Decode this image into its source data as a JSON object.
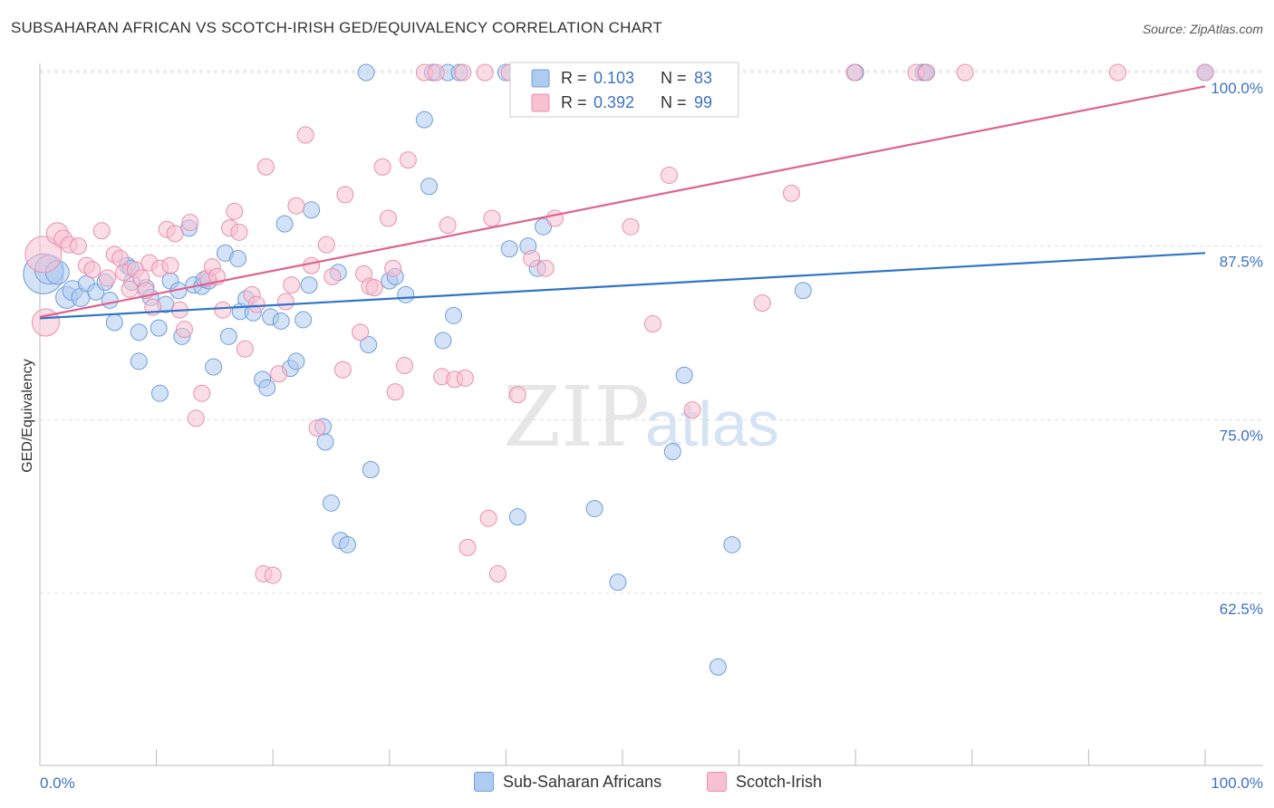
{
  "title": "SUBSAHARAN AFRICAN VS SCOTCH-IRISH GED/EQUIVALENCY CORRELATION CHART",
  "source": "Source: ZipAtlas.com",
  "watermark": {
    "zip": "ZIP",
    "atlas": "atlas"
  },
  "colors": {
    "blue_fill": "#aecbf0",
    "blue_stroke": "#6f9fd8",
    "blue_line": "#2f74c8",
    "pink_fill": "#f7c1d2",
    "pink_stroke": "#e98fad",
    "pink_line": "#e0628f",
    "tick_label": "#3d72c4",
    "grid": "#dddddd",
    "axis": "#bbbbbb"
  },
  "legend": {
    "rows": [
      {
        "r_label": "R =",
        "r_value": "0.103",
        "n_label": "N =",
        "n_value": "83"
      },
      {
        "r_label": "R =",
        "r_value": "0.392",
        "n_label": "N =",
        "n_value": "99"
      }
    ]
  },
  "bottom_legend": {
    "items": [
      "Sub-Saharan Africans",
      "Scotch-Irish"
    ]
  },
  "chart_data": {
    "type": "scatter",
    "xlabel": "",
    "ylabel": "GED/Equivalency",
    "xlim": [
      0,
      100
    ],
    "ylim": [
      50.5,
      101
    ],
    "x_tick_labels": [
      "0.0%",
      "100.0%"
    ],
    "y_ticks": [
      62.5,
      75.0,
      87.5,
      100.0
    ],
    "y_tick_labels": [
      "62.5%",
      "75.0%",
      "87.5%",
      "100.0%"
    ],
    "grid": true,
    "legend_position": "top-center",
    "series": [
      {
        "name": "Sub-Saharan Africans",
        "trend": [
          [
            0,
            82.3
          ],
          [
            100,
            87.0
          ]
        ],
        "points": [
          [
            0.3,
            85.5,
            22
          ],
          [
            0.8,
            85.8,
            16
          ],
          [
            1.5,
            85.6,
            13
          ],
          [
            2.3,
            83.8,
            12
          ],
          [
            2.8,
            84.3,
            11
          ],
          [
            3.5,
            83.8,
            10
          ],
          [
            4.0,
            84.8,
            9
          ],
          [
            4.8,
            84.2,
            9
          ],
          [
            5.6,
            84.9,
            9
          ],
          [
            6.0,
            83.6,
            9
          ],
          [
            6.4,
            82.0,
            9
          ],
          [
            7.5,
            86.1,
            9
          ],
          [
            7.8,
            85.9,
            9
          ],
          [
            7.9,
            84.9,
            9
          ],
          [
            8.5,
            81.3,
            9
          ],
          [
            8.5,
            79.2,
            9
          ],
          [
            9.1,
            84.5,
            9
          ],
          [
            9.5,
            83.8,
            9
          ],
          [
            10.2,
            81.6,
            9
          ],
          [
            10.3,
            76.9,
            9
          ],
          [
            10.8,
            83.3,
            9
          ],
          [
            11.2,
            85.0,
            9
          ],
          [
            11.9,
            84.3,
            9
          ],
          [
            12.2,
            81.0,
            9
          ],
          [
            12.8,
            88.8,
            9
          ],
          [
            13.2,
            84.7,
            9
          ],
          [
            13.9,
            84.6,
            9
          ],
          [
            14.1,
            85.1,
            9
          ],
          [
            14.5,
            85.0,
            9
          ],
          [
            14.9,
            78.8,
            9
          ],
          [
            15.9,
            87.0,
            9
          ],
          [
            16.2,
            81.0,
            9
          ],
          [
            17.0,
            86.6,
            9
          ],
          [
            17.2,
            82.8,
            9
          ],
          [
            17.7,
            83.7,
            9
          ],
          [
            18.3,
            82.7,
            9
          ],
          [
            19.1,
            77.9,
            9
          ],
          [
            19.5,
            77.3,
            9
          ],
          [
            19.8,
            82.4,
            9
          ],
          [
            20.7,
            82.1,
            9
          ],
          [
            21.0,
            89.1,
            9
          ],
          [
            21.5,
            78.7,
            9
          ],
          [
            22.0,
            79.2,
            9
          ],
          [
            22.6,
            82.2,
            9
          ],
          [
            23.1,
            84.7,
            9
          ],
          [
            23.3,
            90.1,
            9
          ],
          [
            24.3,
            74.5,
            9
          ],
          [
            24.5,
            73.4,
            9
          ],
          [
            25.0,
            69.0,
            9
          ],
          [
            25.6,
            85.6,
            9
          ],
          [
            25.8,
            66.3,
            9
          ],
          [
            26.4,
            66.0,
            9
          ],
          [
            28.0,
            100.0,
            9
          ],
          [
            28.2,
            80.4,
            9
          ],
          [
            28.4,
            71.4,
            9
          ],
          [
            30.0,
            85.0,
            9
          ],
          [
            30.5,
            85.3,
            9
          ],
          [
            31.4,
            84.0,
            9
          ],
          [
            33.0,
            96.6,
            9
          ],
          [
            33.4,
            91.8,
            9
          ],
          [
            33.7,
            100.0,
            9
          ],
          [
            34.6,
            80.7,
            9
          ],
          [
            35.0,
            100.0,
            9
          ],
          [
            35.5,
            82.5,
            9
          ],
          [
            36.0,
            100.0,
            9
          ],
          [
            40.0,
            100.0,
            9
          ],
          [
            40.3,
            87.3,
            9
          ],
          [
            41.0,
            68.0,
            9
          ],
          [
            41.9,
            87.5,
            9
          ],
          [
            42.7,
            85.9,
            9
          ],
          [
            43.2,
            88.9,
            9
          ],
          [
            47.6,
            68.6,
            9
          ],
          [
            49.6,
            63.3,
            9
          ],
          [
            54.3,
            72.7,
            9
          ],
          [
            55.3,
            78.2,
            9
          ],
          [
            58.2,
            57.2,
            9
          ],
          [
            59.4,
            66.0,
            9
          ],
          [
            65.5,
            84.3,
            9
          ],
          [
            70.0,
            100.0,
            9
          ],
          [
            75.8,
            100.0,
            9
          ],
          [
            76.0,
            100.0,
            9
          ],
          [
            100.0,
            100.0,
            9
          ],
          [
            100.0,
            100.0,
            9
          ]
        ]
      },
      {
        "name": "Scotch-Irish",
        "trend": [
          [
            0,
            82.4
          ],
          [
            100,
            99.0
          ]
        ],
        "points": [
          [
            0.3,
            86.9,
            20
          ],
          [
            0.5,
            82.0,
            15
          ],
          [
            1.5,
            88.4,
            12
          ],
          [
            2.0,
            88.0,
            10
          ],
          [
            2.5,
            87.6,
            9
          ],
          [
            3.3,
            87.5,
            9
          ],
          [
            4.0,
            86.1,
            9
          ],
          [
            4.5,
            85.8,
            9
          ],
          [
            5.3,
            88.6,
            9
          ],
          [
            5.8,
            85.2,
            9
          ],
          [
            6.4,
            86.9,
            9
          ],
          [
            6.9,
            86.6,
            9
          ],
          [
            7.2,
            85.6,
            9
          ],
          [
            7.7,
            84.4,
            9
          ],
          [
            8.2,
            85.8,
            9
          ],
          [
            8.7,
            85.2,
            9
          ],
          [
            9.1,
            84.3,
            9
          ],
          [
            9.4,
            86.3,
            9
          ],
          [
            9.7,
            83.1,
            9
          ],
          [
            10.3,
            85.9,
            9
          ],
          [
            10.9,
            88.7,
            9
          ],
          [
            11.2,
            86.1,
            9
          ],
          [
            11.6,
            88.4,
            9
          ],
          [
            12.0,
            82.9,
            9
          ],
          [
            12.4,
            81.5,
            9
          ],
          [
            12.9,
            89.2,
            9
          ],
          [
            13.4,
            75.1,
            9
          ],
          [
            13.9,
            76.9,
            9
          ],
          [
            14.4,
            85.2,
            9
          ],
          [
            14.8,
            86.0,
            9
          ],
          [
            15.2,
            85.3,
            9
          ],
          [
            15.7,
            82.9,
            9
          ],
          [
            16.3,
            88.8,
            9
          ],
          [
            16.7,
            90.0,
            9
          ],
          [
            17.1,
            88.5,
            9
          ],
          [
            17.6,
            80.1,
            9
          ],
          [
            18.2,
            84.0,
            9
          ],
          [
            18.6,
            83.3,
            9
          ],
          [
            19.2,
            63.9,
            9
          ],
          [
            19.4,
            93.2,
            9
          ],
          [
            20.0,
            63.8,
            9
          ],
          [
            20.5,
            78.3,
            9
          ],
          [
            21.1,
            83.5,
            9
          ],
          [
            21.6,
            84.7,
            9
          ],
          [
            22.0,
            90.4,
            9
          ],
          [
            22.8,
            95.5,
            9
          ],
          [
            23.3,
            86.1,
            9
          ],
          [
            23.8,
            74.4,
            9
          ],
          [
            24.6,
            87.6,
            9
          ],
          [
            25.1,
            85.3,
            9
          ],
          [
            26.0,
            78.6,
            9
          ],
          [
            26.2,
            91.2,
            9
          ],
          [
            27.5,
            81.3,
            9
          ],
          [
            27.8,
            85.5,
            9
          ],
          [
            28.3,
            84.6,
            9
          ],
          [
            28.7,
            84.5,
            9
          ],
          [
            29.4,
            93.2,
            9
          ],
          [
            29.9,
            89.5,
            9
          ],
          [
            30.3,
            85.9,
            9
          ],
          [
            30.5,
            77.0,
            9
          ],
          [
            31.3,
            78.9,
            9
          ],
          [
            31.6,
            93.7,
            9
          ],
          [
            33.0,
            100.0,
            9
          ],
          [
            34.0,
            100.0,
            9
          ],
          [
            34.5,
            78.1,
            9
          ],
          [
            35.0,
            89.0,
            9
          ],
          [
            35.6,
            77.9,
            9
          ],
          [
            36.3,
            100.0,
            9
          ],
          [
            36.5,
            78.0,
            9
          ],
          [
            36.7,
            65.8,
            9
          ],
          [
            38.2,
            100.0,
            9
          ],
          [
            38.5,
            67.9,
            9
          ],
          [
            38.8,
            89.5,
            9
          ],
          [
            39.3,
            63.9,
            9
          ],
          [
            40.3,
            100.0,
            9
          ],
          [
            41.0,
            76.8,
            9
          ],
          [
            42.2,
            86.6,
            9
          ],
          [
            42.6,
            100.0,
            9
          ],
          [
            43.4,
            85.9,
            9
          ],
          [
            44.2,
            89.5,
            9
          ],
          [
            47.5,
            100.0,
            9
          ],
          [
            49.6,
            100.0,
            9
          ],
          [
            50.0,
            100.0,
            9
          ],
          [
            50.7,
            88.9,
            9
          ],
          [
            51.4,
            100.0,
            9
          ],
          [
            52.6,
            81.9,
            9
          ],
          [
            53.4,
            100.0,
            9
          ],
          [
            54.0,
            92.6,
            9
          ],
          [
            55.0,
            100.0,
            9
          ],
          [
            56.0,
            75.7,
            9
          ],
          [
            57.2,
            100.0,
            9
          ],
          [
            62.0,
            83.4,
            9
          ],
          [
            64.5,
            91.3,
            9
          ],
          [
            69.9,
            100.0,
            9
          ],
          [
            75.2,
            100.0,
            9
          ],
          [
            76.1,
            100.0,
            9
          ],
          [
            79.4,
            100.0,
            9
          ],
          [
            92.5,
            100.0,
            9
          ],
          [
            100.0,
            100.0,
            9
          ]
        ]
      }
    ]
  }
}
